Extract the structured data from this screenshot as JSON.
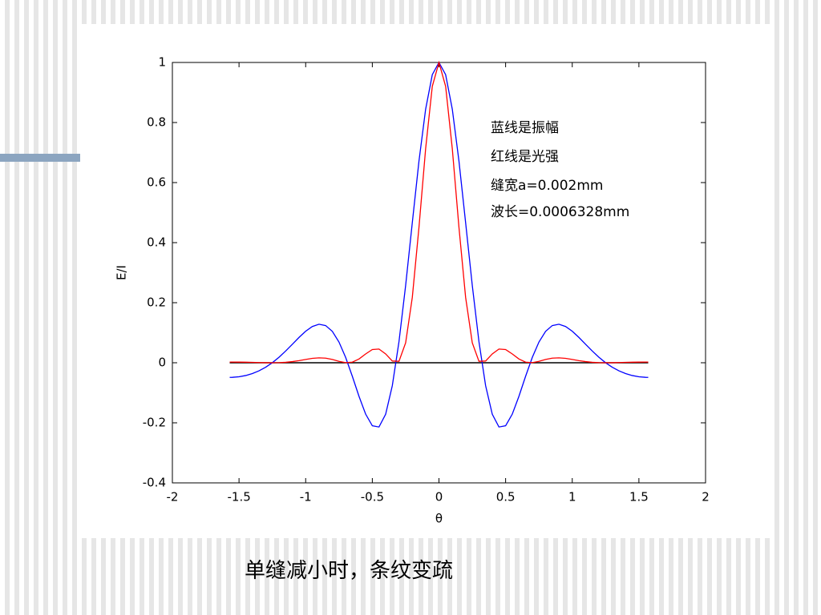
{
  "slide": {
    "caption": "单缝减小时，条纹变疏"
  },
  "chart_data": {
    "type": "line",
    "xlabel": "θ",
    "ylabel": "E/I",
    "x": [
      -1.57,
      -1.55,
      -1.5,
      -1.45,
      -1.4,
      -1.35,
      -1.3,
      -1.25,
      -1.2,
      -1.15,
      -1.1,
      -1.05,
      -1.0,
      -0.95,
      -0.9,
      -0.85,
      -0.8,
      -0.75,
      -0.7,
      -0.65,
      -0.6,
      -0.55,
      -0.5,
      -0.45,
      -0.4,
      -0.35,
      -0.3,
      -0.25,
      -0.2,
      -0.15,
      -0.1,
      -0.05,
      0,
      0.05,
      0.1,
      0.15,
      0.2,
      0.25,
      0.3,
      0.35,
      0.4,
      0.45,
      0.5,
      0.55,
      0.6,
      0.65,
      0.7,
      0.75,
      0.8,
      0.85,
      0.9,
      0.95,
      1.0,
      1.05,
      1.1,
      1.15,
      1.2,
      1.25,
      1.3,
      1.35,
      1.4,
      1.45,
      1.5,
      1.55,
      1.57
    ],
    "series": [
      {
        "color": "#0000ff",
        "values": [
          -0.0486,
          -0.0485,
          -0.0466,
          -0.0425,
          -0.036,
          -0.0269,
          -0.0149,
          0.0002,
          0.0183,
          0.0391,
          0.0615,
          0.0843,
          0.105,
          0.1208,
          0.1282,
          0.1238,
          0.1045,
          0.0689,
          0.0177,
          -0.045,
          -0.1117,
          -0.1711,
          -0.2098,
          -0.2139,
          -0.1715,
          -0.0764,
          0.0701,
          0.2575,
          0.4666,
          0.6714,
          0.8444,
          0.9595,
          1,
          0.9595,
          0.8444,
          0.6714,
          0.4666,
          0.2575,
          0.0701,
          -0.0764,
          -0.1715,
          -0.2139,
          -0.2098,
          -0.1711,
          -0.1117,
          -0.045,
          0.0177,
          0.0689,
          0.1045,
          0.1238,
          0.1282,
          0.1208,
          0.105,
          0.0843,
          0.0615,
          0.0391,
          0.0183,
          0.0002,
          -0.0149,
          -0.0269,
          -0.036,
          -0.0425,
          -0.0466,
          -0.0485,
          -0.0486
        ]
      },
      {
        "color": "#ff0000",
        "values": [
          0.0024,
          0.0023,
          0.0022,
          0.0018,
          0.0013,
          0.0007,
          0.0002,
          0,
          0.0003,
          0.0015,
          0.0038,
          0.0071,
          0.011,
          0.0146,
          0.0164,
          0.0153,
          0.0109,
          0.0047,
          0.0003,
          0.002,
          0.0125,
          0.0293,
          0.044,
          0.0457,
          0.0294,
          0.0058,
          0.0049,
          0.0663,
          0.2177,
          0.4508,
          0.713,
          0.9206,
          1,
          0.9206,
          0.713,
          0.4508,
          0.2177,
          0.0663,
          0.0049,
          0.0058,
          0.0294,
          0.0457,
          0.044,
          0.0293,
          0.0125,
          0.002,
          0.0003,
          0.0047,
          0.0109,
          0.0153,
          0.0164,
          0.0146,
          0.011,
          0.0071,
          0.0038,
          0.0015,
          0.0003,
          0,
          0.0002,
          0.0007,
          0.0013,
          0.0018,
          0.0022,
          0.0023,
          0.0024
        ]
      }
    ],
    "annotations": [
      {
        "text": "蓝线是振幅",
        "color": "#0000ff"
      },
      {
        "text": "红线是光强",
        "color": "#ff0000"
      },
      {
        "text": "缝宽a=0.002mm",
        "color": "#000000"
      },
      {
        "text": "波长=0.0006328mm",
        "color": "#000000"
      }
    ],
    "zero_line_color": "#000000",
    "xlim": [
      -2,
      2
    ],
    "xticks": [
      -2,
      -1.5,
      -1,
      -0.5,
      0,
      0.5,
      1,
      1.5,
      2
    ],
    "ylim": [
      -0.4,
      1
    ],
    "yticks": [
      -0.4,
      -0.2,
      0,
      0.2,
      0.4,
      0.6,
      0.8,
      1
    ]
  }
}
